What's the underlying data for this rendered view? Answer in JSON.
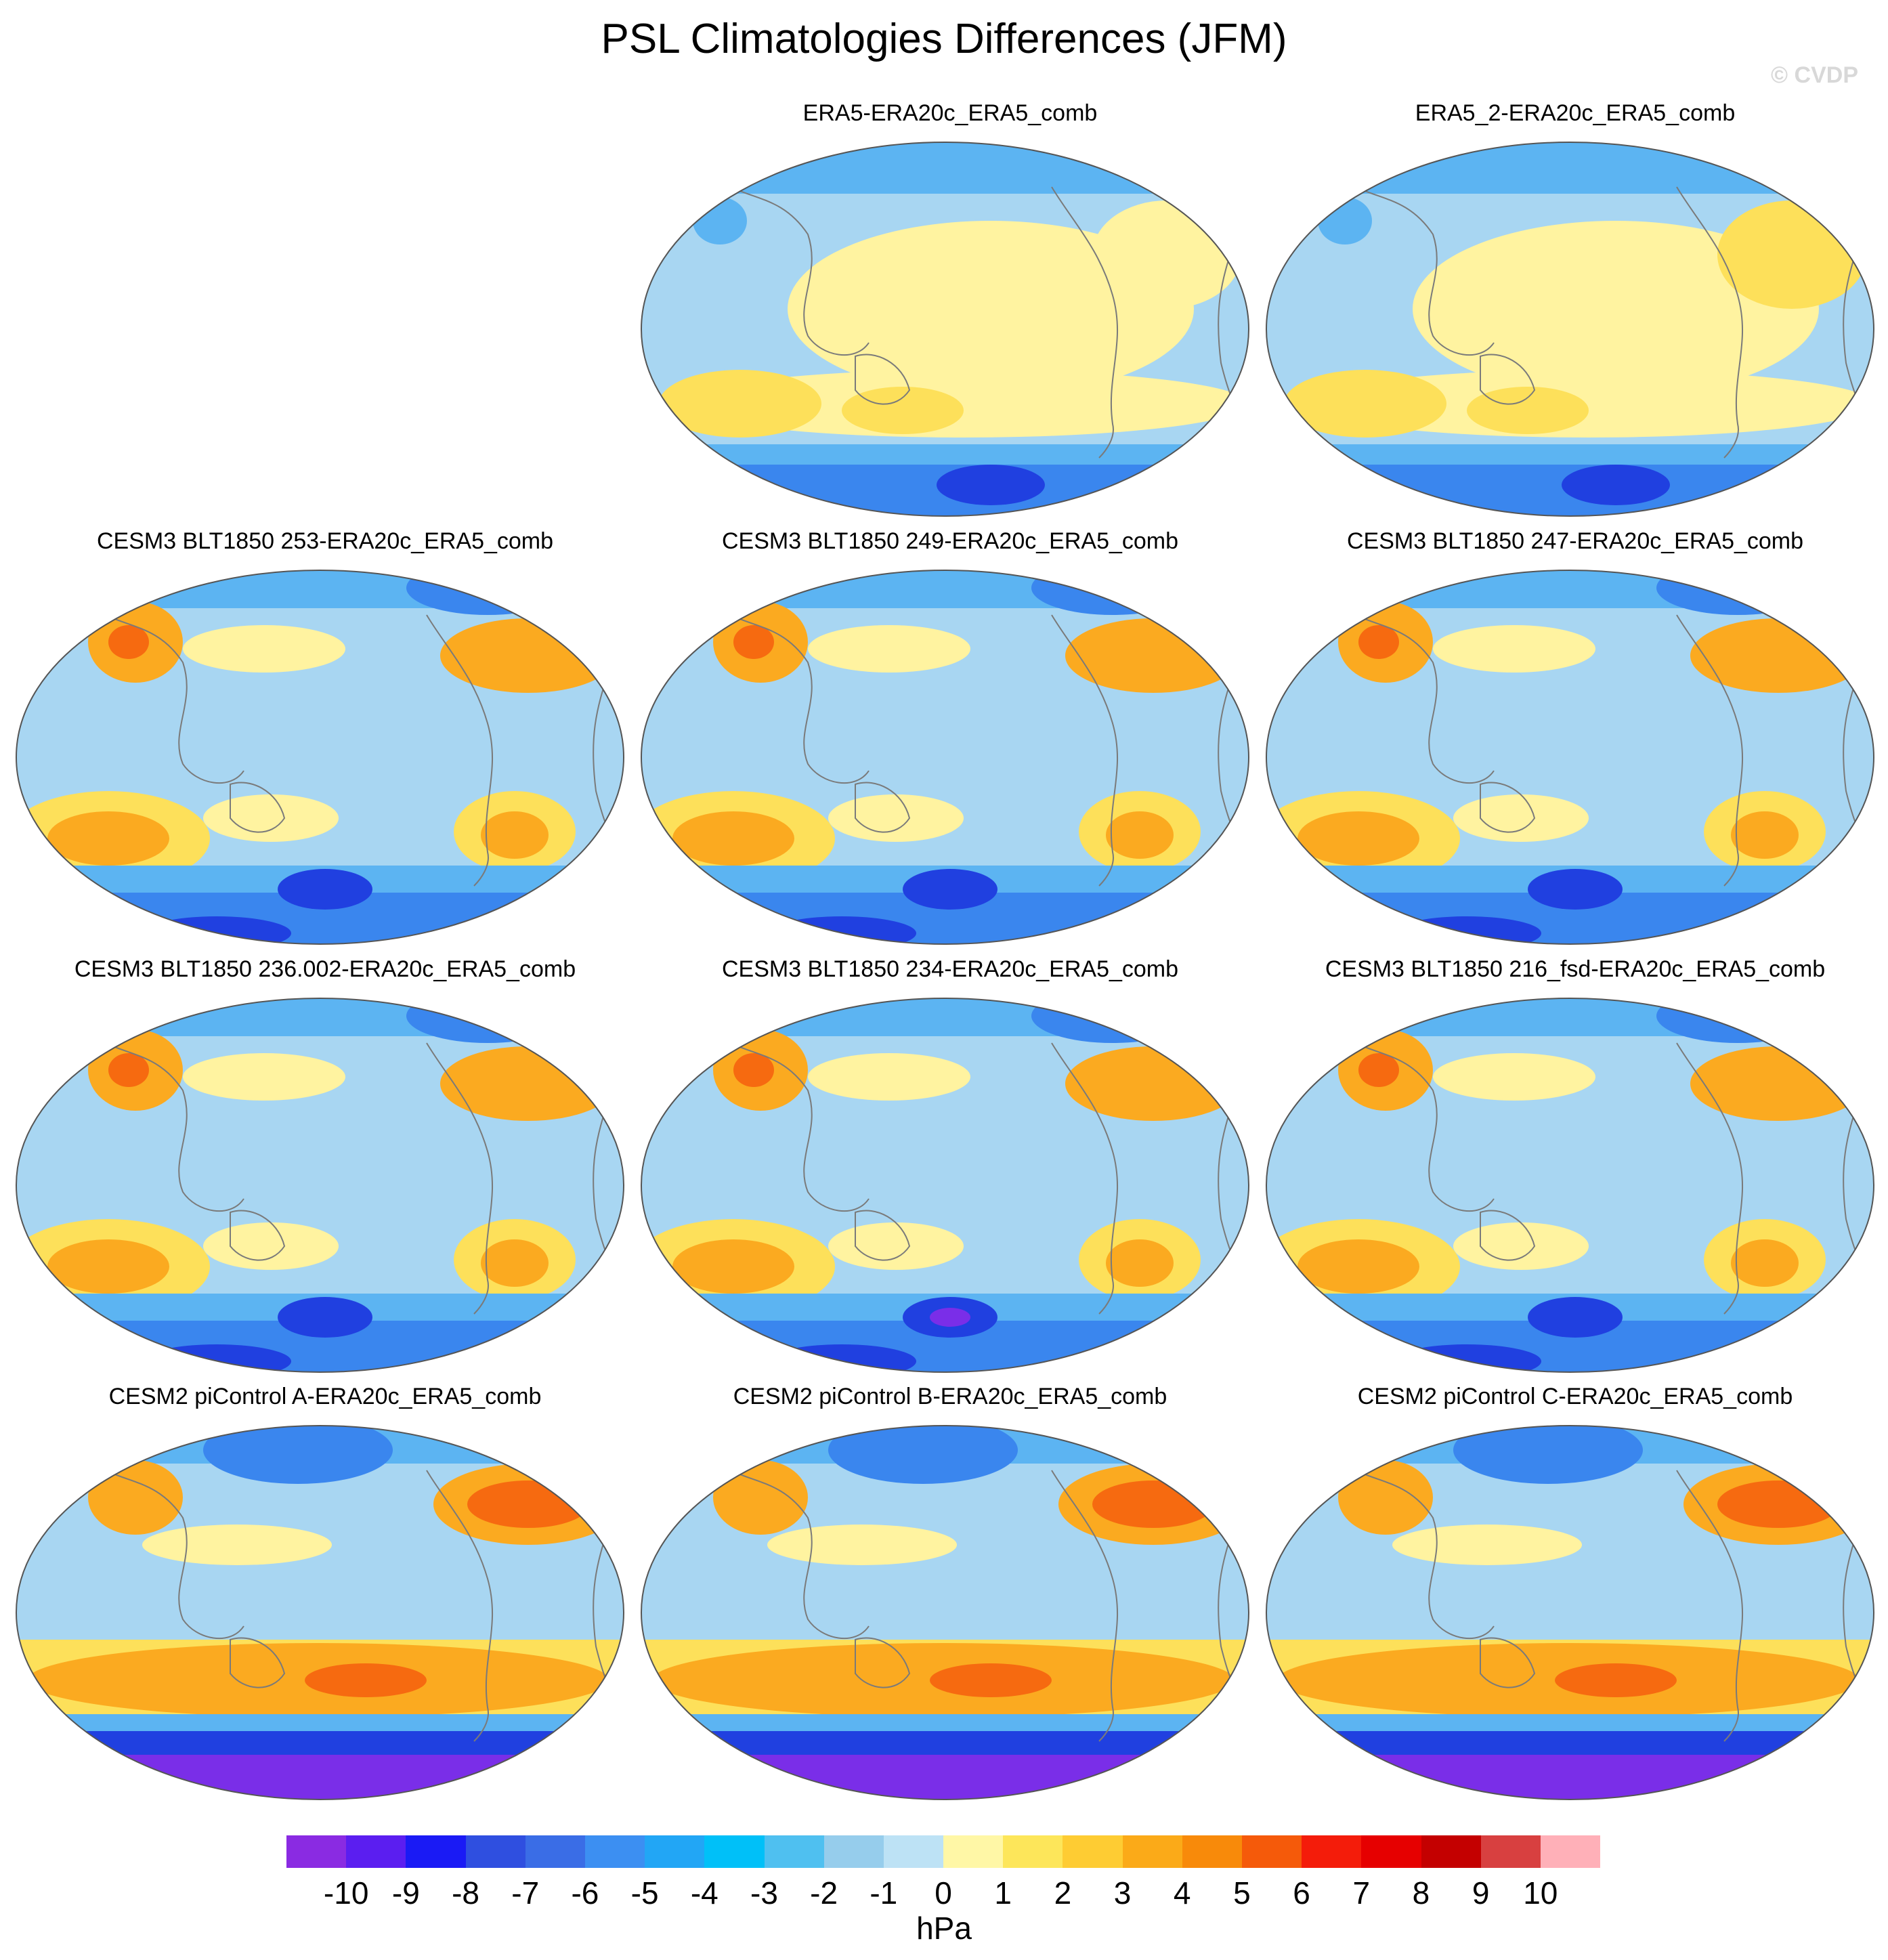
{
  "title": "PSL Climatologies Differences (JFM)",
  "copyright": "© CVDP",
  "panels": [
    {
      "title": "ERA5-ERA20c_ERA5_comb",
      "style": "reanalysis",
      "variant": 0
    },
    {
      "title": "ERA5_2-ERA20c_ERA5_comb",
      "style": "reanalysis",
      "variant": 1
    },
    {
      "title": "CESM3 BLT1850 253-ERA20c_ERA5_comb",
      "style": "cesm3",
      "variant": 0
    },
    {
      "title": "CESM3 BLT1850 249-ERA20c_ERA5_comb",
      "style": "cesm3",
      "variant": 1
    },
    {
      "title": "CESM3 BLT1850 247-ERA20c_ERA5_comb",
      "style": "cesm3",
      "variant": 2
    },
    {
      "title": "CESM3 BLT1850 236.002-ERA20c_ERA5_comb",
      "style": "cesm3",
      "variant": 3
    },
    {
      "title": "CESM3 BLT1850 234-ERA20c_ERA5_comb",
      "style": "cesm3",
      "variant": 4
    },
    {
      "title": "CESM3 BLT1850 216_fsd-ERA20c_ERA5_comb",
      "style": "cesm3",
      "variant": 5
    },
    {
      "title": "CESM2 piControl A-ERA20c_ERA5_comb",
      "style": "cesm2",
      "variant": 0
    },
    {
      "title": "CESM2 piControl B-ERA20c_ERA5_comb",
      "style": "cesm2",
      "variant": 1
    },
    {
      "title": "CESM2 piControl C-ERA20c_ERA5_comb",
      "style": "cesm2",
      "variant": 2
    }
  ],
  "colorbar": {
    "units": "hPa",
    "labels": [
      "-10",
      "-9",
      "-8",
      "-7",
      "-6",
      "-5",
      "-4",
      "-3",
      "-2",
      "-1",
      "0",
      "1",
      "2",
      "3",
      "4",
      "5",
      "6",
      "7",
      "8",
      "9",
      "10"
    ],
    "colors": [
      "#8a2be2",
      "#5b1ef0",
      "#1a1af5",
      "#2f4fe0",
      "#3a6de6",
      "#3c8ff2",
      "#22a6f5",
      "#00c0f8",
      "#4fc0f0",
      "#96cdec",
      "#bde2f5",
      "#fff7a6",
      "#fde65a",
      "#fecc33",
      "#fbaa18",
      "#f88a0a",
      "#f55a0a",
      "#f41c0a",
      "#e60000",
      "#c40000",
      "#d84040",
      "#ffb0b8"
    ]
  },
  "map_colors": {
    "deep_purple": "#7a2ee8",
    "blue_dark": "#2040e0",
    "blue_mid": "#3a86ee",
    "blue_light": "#5cb4f2",
    "blue_pale": "#a8d6f2",
    "yellow_pale": "#fff3a0",
    "yellow": "#fde05a",
    "orange": "#fbaa20",
    "red_orange": "#f66a10",
    "coast": "#7a7a7a"
  }
}
